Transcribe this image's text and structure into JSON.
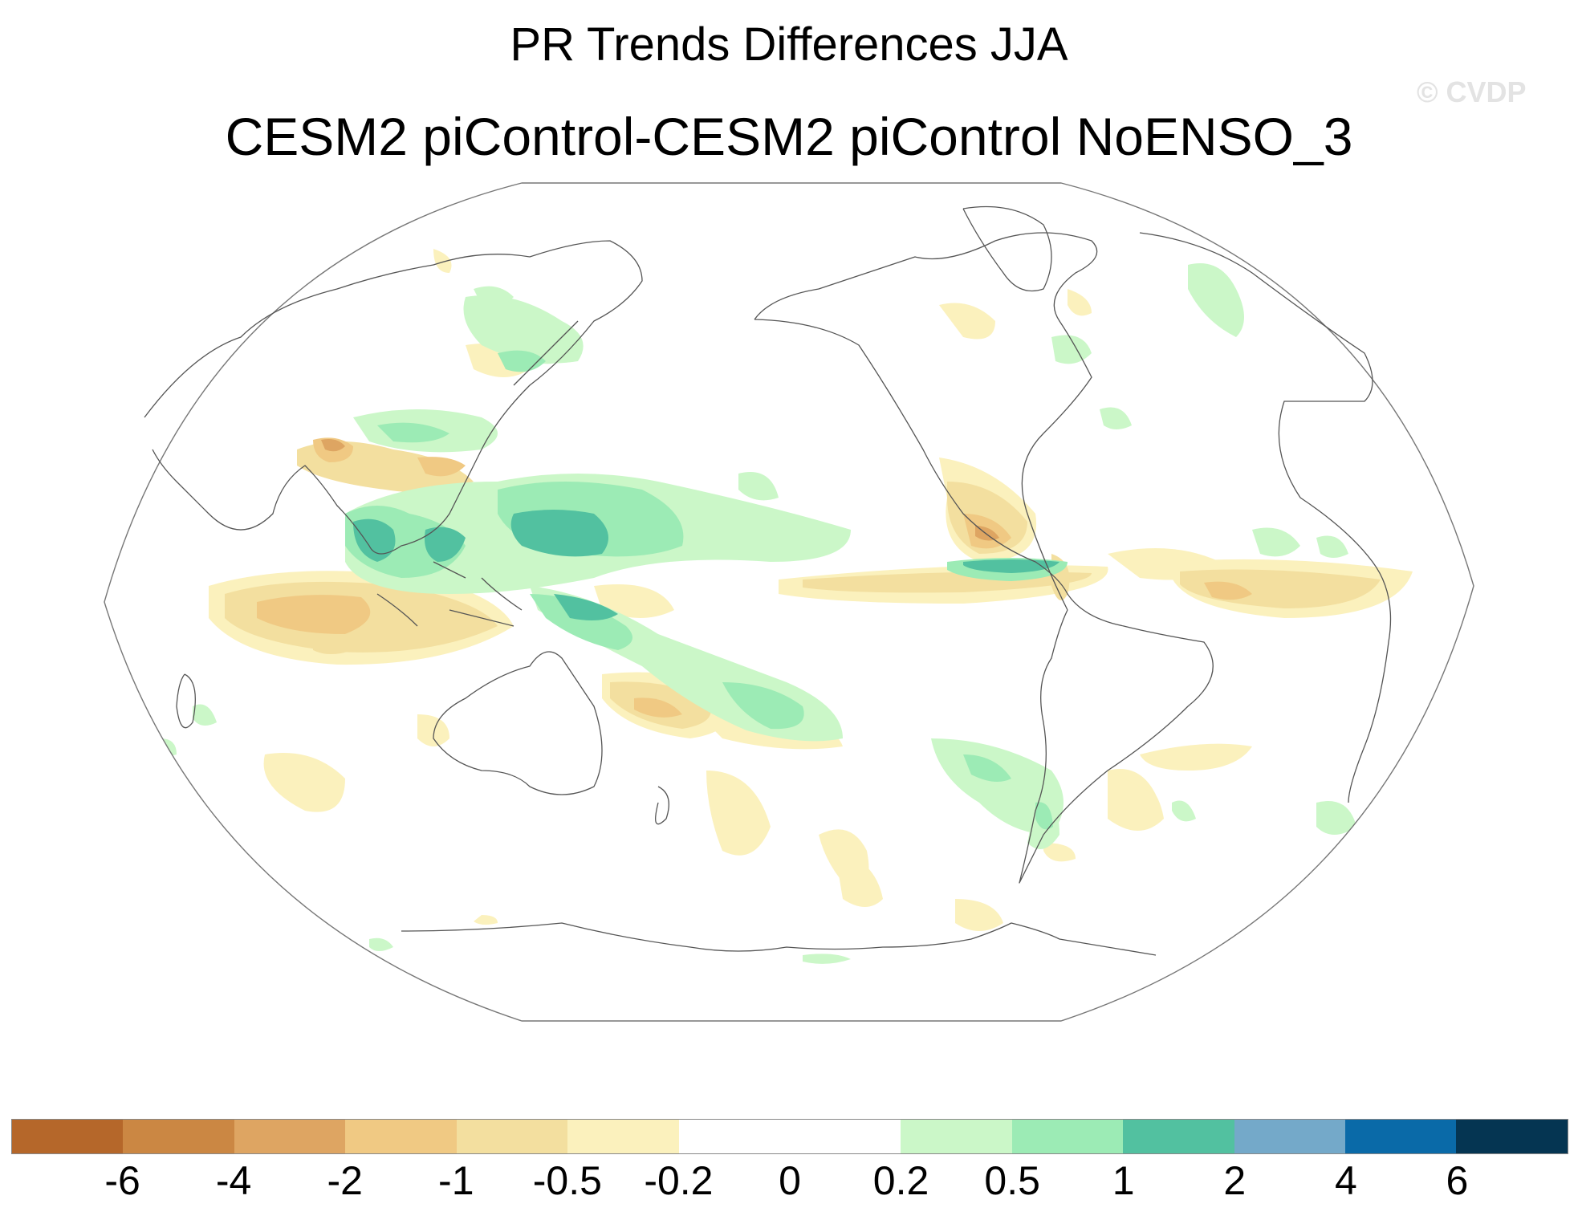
{
  "title": "PR Trends Differences JJA",
  "subtitle": "CESM2 piControl-CESM2 piControl NoENSO_3",
  "watermark": "© CVDP",
  "colorbar": {
    "colors": [
      "#b5672a",
      "#cb8743",
      "#dea562",
      "#f0c983",
      "#f3df9f",
      "#fbf1bd",
      "#ffffff",
      "#ffffff",
      "#cbf7c8",
      "#9cebb5",
      "#52c1a0",
      "#74a9c9",
      "#0a6aa8",
      "#053552"
    ],
    "labels": [
      "-6",
      "-4",
      "-2",
      "-1",
      "-0.5",
      "-0.2",
      "0",
      "0.2",
      "0.5",
      "1",
      "2",
      "4",
      "6"
    ]
  },
  "palette": {
    "brown_strong": "#dea562",
    "brown_mid": "#f0c983",
    "brown_light": "#fbf1bd",
    "green_light": "#cbf7c8",
    "green_mid": "#9cebb5",
    "green_strong": "#52c1a0",
    "land_outline": "#666666"
  }
}
